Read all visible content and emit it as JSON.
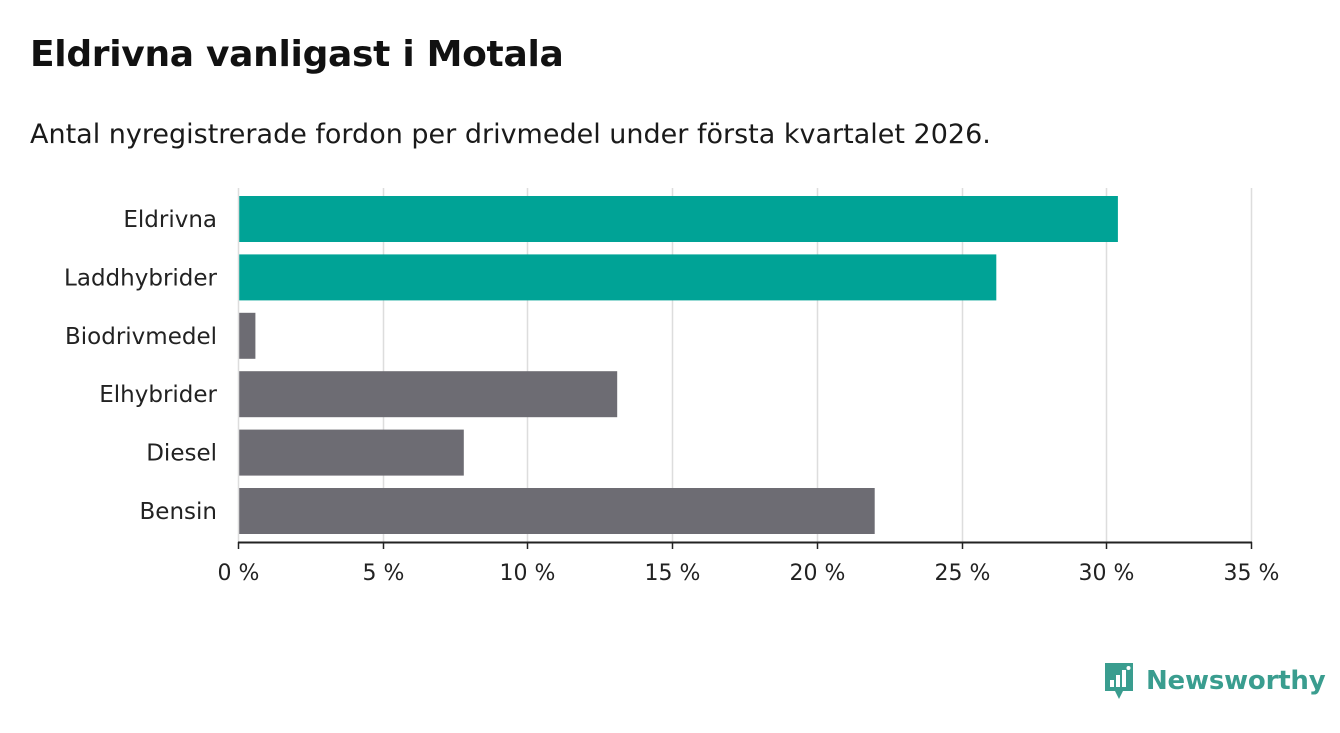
{
  "header": {
    "title": "Eldrivna vanligast i Motala",
    "subtitle": "Antal nyregistrerade fordon per drivmedel under första kvartalet 2026."
  },
  "branding": {
    "logo_text": "Newsworthy",
    "logo_icon": "bar-chart-badge-icon",
    "logo_color": "#3a9d8f"
  },
  "colors": {
    "highlight": "#00a396",
    "default": "#6d6c73",
    "grid": "#dddddd",
    "axis": "#222222"
  },
  "chart_data": {
    "type": "bar",
    "orientation": "horizontal",
    "title": "Eldrivna vanligast i Motala",
    "subtitle": "Antal nyregistrerade fordon per drivmedel under första kvartalet 2026.",
    "xlabel": "",
    "ylabel": "",
    "categories": [
      "Eldrivna",
      "Laddhybrider",
      "Biodrivmedel",
      "Elhybrider",
      "Diesel",
      "Bensin"
    ],
    "values": [
      30.4,
      26.2,
      0.6,
      13.1,
      7.8,
      22.0
    ],
    "highlighted": [
      true,
      true,
      false,
      false,
      false,
      false
    ],
    "xlim": [
      0,
      35
    ],
    "xticks": [
      0,
      5,
      10,
      15,
      20,
      25,
      30,
      35
    ],
    "xtick_labels": [
      "0 %",
      "5 %",
      "10 %",
      "15 %",
      "20 %",
      "25 %",
      "30 %",
      "35 %"
    ],
    "grid": true,
    "legend": "none"
  }
}
